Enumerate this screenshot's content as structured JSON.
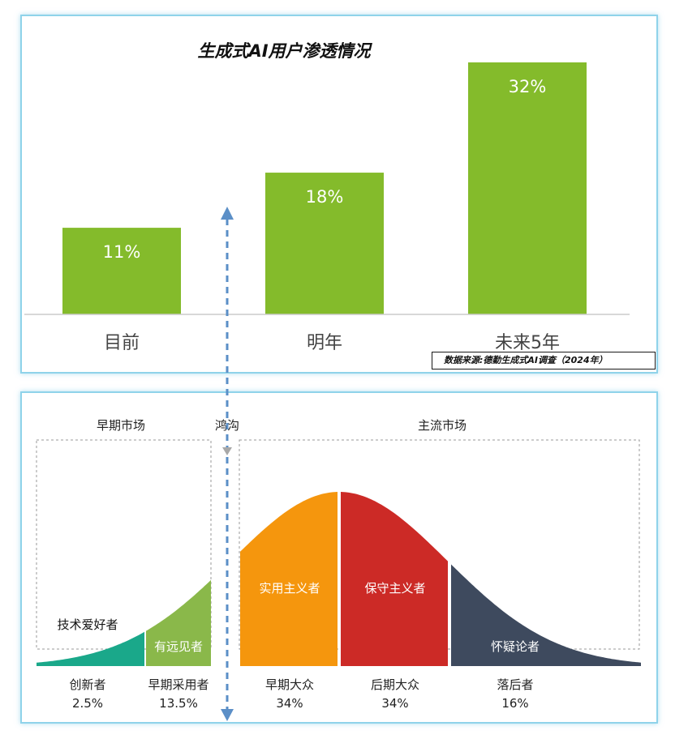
{
  "chart_data": [
    {
      "type": "bar",
      "title": "生成式AI用户渗透情况",
      "categories": [
        "目前",
        "明年",
        "未来5年"
      ],
      "values": [
        11,
        18,
        32
      ],
      "value_labels": [
        "11%",
        "18%",
        "32%"
      ],
      "ylim": [
        0,
        40
      ],
      "bar_color": "#84bb2b",
      "grid": false,
      "source": "数据来源:德勤生成式AI调查（2024年）"
    },
    {
      "type": "area",
      "region_labels": {
        "early": "早期市场",
        "chasm": "鸿沟",
        "main": "主流市场"
      },
      "segments": [
        {
          "name": "创新者",
          "percent": "2.5%",
          "value": 2.5,
          "inner_label": "技术爱好者",
          "color": "#1aa88a"
        },
        {
          "name": "早期采用者",
          "percent": "13.5%",
          "value": 13.5,
          "inner_label": "有远见者",
          "color": "#8ab84a"
        },
        {
          "name": "早期大众",
          "percent": "34%",
          "value": 34,
          "inner_label": "实用主义者",
          "color": "#f5960d"
        },
        {
          "name": "后期大众",
          "percent": "34%",
          "value": 34,
          "inner_label": "保守主义者",
          "color": "#cc2a26"
        },
        {
          "name": "落后者",
          "percent": "16%",
          "value": 16,
          "inner_label": "怀疑论者",
          "color": "#3e4a5e"
        }
      ]
    }
  ]
}
